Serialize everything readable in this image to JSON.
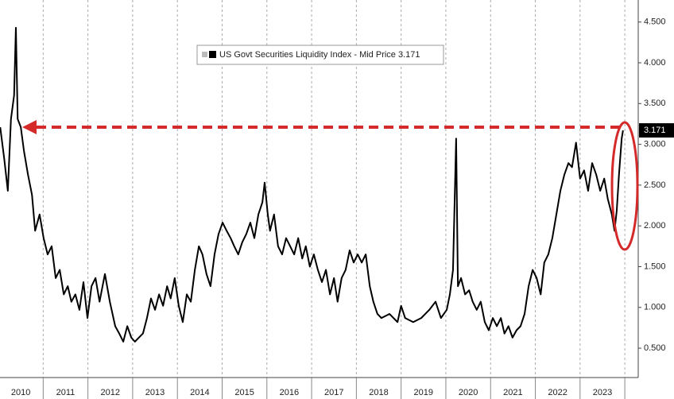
{
  "chart_data": {
    "type": "line",
    "x": [
      2010.04,
      2010.13,
      2010.21,
      2010.28,
      2010.35,
      2010.39,
      2010.43,
      2010.5,
      2010.57,
      2010.66,
      2010.75,
      2010.82,
      2010.92,
      2011.01,
      2011.1,
      2011.19,
      2011.28,
      2011.37,
      2011.46,
      2011.55,
      2011.63,
      2011.72,
      2011.81,
      2011.9,
      2011.99,
      2012.08,
      2012.17,
      2012.26,
      2012.38,
      2012.49,
      2012.61,
      2012.7,
      2012.79,
      2012.88,
      2012.97,
      2013.05,
      2013.14,
      2013.23,
      2013.32,
      2013.41,
      2013.5,
      2013.59,
      2013.68,
      2013.77,
      2013.85,
      2013.94,
      2014.03,
      2014.12,
      2014.21,
      2014.3,
      2014.39,
      2014.48,
      2014.56,
      2014.65,
      2014.74,
      2014.83,
      2014.92,
      2015.01,
      2015.1,
      2015.19,
      2015.27,
      2015.36,
      2015.45,
      2015.54,
      2015.63,
      2015.72,
      2015.81,
      2015.9,
      2015.95,
      2016.02,
      2016.07,
      2016.16,
      2016.25,
      2016.34,
      2016.43,
      2016.52,
      2016.61,
      2016.7,
      2016.79,
      2016.87,
      2016.96,
      2017.05,
      2017.14,
      2017.23,
      2017.32,
      2017.41,
      2017.5,
      2017.58,
      2017.67,
      2017.76,
      2017.85,
      2017.94,
      2018.03,
      2018.12,
      2018.21,
      2018.3,
      2018.38,
      2018.47,
      2018.56,
      2018.74,
      2018.92,
      2019.0,
      2019.09,
      2019.27,
      2019.45,
      2019.63,
      2019.77,
      2019.89,
      2020.02,
      2020.09,
      2020.16,
      2020.23,
      2020.27,
      2020.34,
      2020.43,
      2020.52,
      2020.6,
      2020.69,
      2020.78,
      2020.87,
      2020.96,
      2021.05,
      2021.14,
      2021.23,
      2021.31,
      2021.4,
      2021.49,
      2021.58,
      2021.67,
      2021.76,
      2021.85,
      2021.94,
      2022.03,
      2022.12,
      2022.2,
      2022.29,
      2022.38,
      2022.47,
      2022.56,
      2022.65,
      2022.74,
      2022.82,
      2022.91,
      2023.0,
      2023.09,
      2023.18,
      2023.27,
      2023.36,
      2023.45,
      2023.54,
      2023.62,
      2023.71,
      2023.77,
      2023.82,
      2023.87,
      2023.93,
      2023.96
    ],
    "series": [
      {
        "name": "US Govt Securities Liquidity Index - Mid Price",
        "color": "#000000",
        "values": [
          3.21,
          2.82,
          2.43,
          3.31,
          3.6,
          4.43,
          3.31,
          3.21,
          2.92,
          2.63,
          2.38,
          1.94,
          2.14,
          1.85,
          1.65,
          1.75,
          1.36,
          1.46,
          1.16,
          1.26,
          1.07,
          1.16,
          0.97,
          1.31,
          0.87,
          1.26,
          1.36,
          1.07,
          1.41,
          1.07,
          0.77,
          0.68,
          0.58,
          0.77,
          0.63,
          0.58,
          0.63,
          0.68,
          0.87,
          1.11,
          0.97,
          1.16,
          1.02,
          1.26,
          1.11,
          1.36,
          1.02,
          0.82,
          1.16,
          1.07,
          1.46,
          1.75,
          1.65,
          1.41,
          1.26,
          1.65,
          1.9,
          2.04,
          1.94,
          1.85,
          1.75,
          1.65,
          1.8,
          1.9,
          2.04,
          1.85,
          2.14,
          2.29,
          2.53,
          2.14,
          1.94,
          2.14,
          1.75,
          1.65,
          1.85,
          1.75,
          1.65,
          1.85,
          1.6,
          1.75,
          1.5,
          1.65,
          1.46,
          1.31,
          1.46,
          1.16,
          1.36,
          1.07,
          1.36,
          1.46,
          1.7,
          1.55,
          1.65,
          1.55,
          1.65,
          1.26,
          1.07,
          0.92,
          0.87,
          0.92,
          0.82,
          1.02,
          0.87,
          0.82,
          0.87,
          0.97,
          1.07,
          0.87,
          0.97,
          1.16,
          1.46,
          3.07,
          1.26,
          1.36,
          1.16,
          1.21,
          1.07,
          0.97,
          1.07,
          0.82,
          0.72,
          0.87,
          0.77,
          0.87,
          0.68,
          0.77,
          0.63,
          0.72,
          0.77,
          0.92,
          1.26,
          1.46,
          1.36,
          1.16,
          1.55,
          1.65,
          1.85,
          2.14,
          2.43,
          2.63,
          2.77,
          2.72,
          3.02,
          2.58,
          2.68,
          2.43,
          2.77,
          2.63,
          2.43,
          2.58,
          2.33,
          2.14,
          1.94,
          2.19,
          2.63,
          3.07,
          3.171
        ]
      }
    ],
    "xlim": [
      2010.035,
      2024.3
    ],
    "xticks": [
      {
        "value": 2010.5,
        "label": "2010"
      },
      {
        "value": 2011.5,
        "label": "2011"
      },
      {
        "value": 2012.5,
        "label": "2012"
      },
      {
        "value": 2013.5,
        "label": "2013"
      },
      {
        "value": 2014.5,
        "label": "2014"
      },
      {
        "value": 2015.5,
        "label": "2015"
      },
      {
        "value": 2016.5,
        "label": "2016"
      },
      {
        "value": 2017.5,
        "label": "2017"
      },
      {
        "value": 2018.5,
        "label": "2018"
      },
      {
        "value": 2019.5,
        "label": "2019"
      },
      {
        "value": 2020.5,
        "label": "2020"
      },
      {
        "value": 2021.5,
        "label": "2021"
      },
      {
        "value": 2022.5,
        "label": "2022"
      },
      {
        "value": 2023.5,
        "label": "2023"
      }
    ],
    "ylim": [
      0.14,
      4.77
    ],
    "yticks": [
      {
        "value": 0.5,
        "label": "0.500"
      },
      {
        "value": 1,
        "label": "1.000"
      },
      {
        "value": 1.5,
        "label": "1.500"
      },
      {
        "value": 2,
        "label": "2.000"
      },
      {
        "value": 2.5,
        "label": "2.500"
      },
      {
        "value": 3,
        "label": "3.000"
      },
      {
        "value": 3.5,
        "label": "3.500"
      },
      {
        "value": 4,
        "label": "4.000"
      },
      {
        "value": 4.5,
        "label": "4.500"
      }
    ],
    "xgrid": true
  }
}
